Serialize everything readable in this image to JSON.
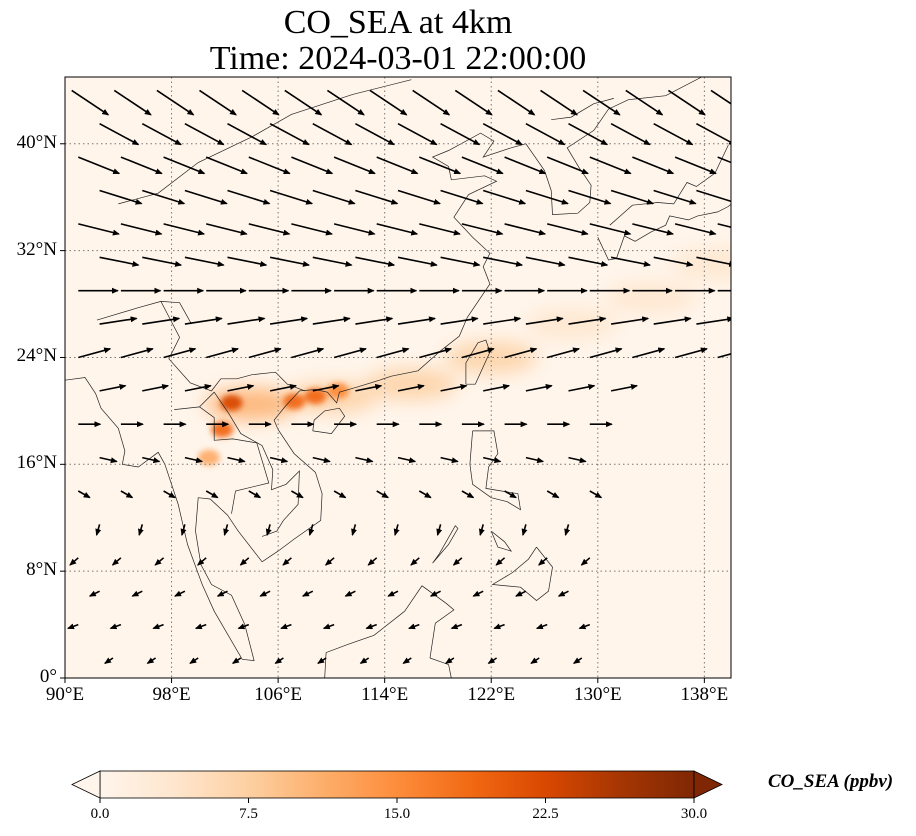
{
  "title": {
    "line1": "CO_SEA at 4km",
    "line2": "Time: 2024-03-01 22:00:00"
  },
  "map": {
    "lon_range": [
      90,
      140
    ],
    "lat_range": [
      0,
      45
    ],
    "lon_ticks": [
      {
        "value": 90,
        "label": "90°E"
      },
      {
        "value": 98,
        "label": "98°E"
      },
      {
        "value": 106,
        "label": "106°E"
      },
      {
        "value": 114,
        "label": "114°E"
      },
      {
        "value": 122,
        "label": "122°E"
      },
      {
        "value": 130,
        "label": "130°E"
      },
      {
        "value": 138,
        "label": "138°E"
      }
    ],
    "lat_ticks": [
      {
        "value": 0,
        "label": "0°"
      },
      {
        "value": 8,
        "label": "8°N"
      },
      {
        "value": 16,
        "label": "16°N"
      },
      {
        "value": 24,
        "label": "24°N"
      },
      {
        "value": 32,
        "label": "32°N"
      },
      {
        "value": 40,
        "label": "40°N"
      }
    ],
    "gridlines": true,
    "field_variable": "CO_SEA",
    "hotspots": [
      {
        "lon": 102.5,
        "lat": 20.6,
        "value": 22
      },
      {
        "lon": 101.8,
        "lat": 18.6,
        "value": 20
      },
      {
        "lon": 107.2,
        "lat": 20.7,
        "value": 19
      },
      {
        "lon": 108.8,
        "lat": 21.1,
        "value": 18
      },
      {
        "lon": 110.5,
        "lat": 21.5,
        "value": 16
      },
      {
        "lon": 100.8,
        "lat": 16.5,
        "value": 12
      }
    ],
    "plume": [
      {
        "lon": 104,
        "lat": 20.5,
        "value": 10
      },
      {
        "lon": 110,
        "lat": 21.0,
        "value": 9
      },
      {
        "lon": 116,
        "lat": 22.0,
        "value": 7
      },
      {
        "lon": 122,
        "lat": 24.0,
        "value": 6
      },
      {
        "lon": 128,
        "lat": 26.5,
        "value": 5
      },
      {
        "lon": 134,
        "lat": 28.5,
        "value": 4.5
      },
      {
        "lon": 139,
        "lat": 31.0,
        "value": 4
      }
    ],
    "wind_rows": [
      {
        "lat": 44,
        "lon_start": 90.5,
        "lon_end": 139,
        "u": 1.2,
        "v": -0.8,
        "speed": 1.0
      },
      {
        "lat": 41.5,
        "lon_start": 91,
        "lon_end": 139,
        "u": 1.3,
        "v": -0.7,
        "speed": 1.0
      },
      {
        "lat": 39,
        "lon_start": 91,
        "lon_end": 139,
        "u": 1.5,
        "v": -0.6,
        "speed": 1.0
      },
      {
        "lat": 36.5,
        "lon_start": 91,
        "lon_end": 139,
        "u": 1.6,
        "v": -0.5,
        "speed": 1.0
      },
      {
        "lat": 34,
        "lon_start": 91,
        "lon_end": 139,
        "u": 1.6,
        "v": -0.4,
        "speed": 0.95
      },
      {
        "lat": 31.5,
        "lon_start": 91,
        "lon_end": 139,
        "u": 1.5,
        "v": -0.3,
        "speed": 0.9
      },
      {
        "lat": 29,
        "lon_start": 91,
        "lon_end": 139,
        "u": 1.4,
        "v": 0.0,
        "speed": 0.9
      },
      {
        "lat": 26.5,
        "lon_start": 91,
        "lon_end": 139,
        "u": 1.3,
        "v": 0.2,
        "speed": 0.85
      },
      {
        "lat": 24,
        "lon_start": 91,
        "lon_end": 139,
        "u": 1.1,
        "v": 0.3,
        "speed": 0.75
      },
      {
        "lat": 21.5,
        "lon_start": 91,
        "lon_end": 132,
        "u": 1.0,
        "v": 0.2,
        "speed": 0.6
      },
      {
        "lat": 19,
        "lon_start": 91,
        "lon_end": 131,
        "u": 1.0,
        "v": 0.0,
        "speed": 0.5
      },
      {
        "lat": 16.5,
        "lon_start": 91,
        "lon_end": 130,
        "u": 0.9,
        "v": -0.2,
        "speed": 0.4
      },
      {
        "lat": 14,
        "lon_start": 91,
        "lon_end": 130,
        "u": 0.7,
        "v": -0.4,
        "speed": 0.3
      },
      {
        "lat": 11.5,
        "lon_start": 91,
        "lon_end": 130,
        "u": -0.2,
        "v": -0.7,
        "speed": 0.25
      },
      {
        "lat": 9,
        "lon_start": 91,
        "lon_end": 130,
        "u": -0.7,
        "v": -0.6,
        "speed": 0.25
      },
      {
        "lat": 6.5,
        "lon_start": 91,
        "lon_end": 130,
        "u": -0.8,
        "v": -0.4,
        "speed": 0.25
      },
      {
        "lat": 4,
        "lon_start": 91,
        "lon_end": 130,
        "u": -0.8,
        "v": -0.3,
        "speed": 0.25
      },
      {
        "lat": 1.5,
        "lon_start": 92,
        "lon_end": 130,
        "u": -0.6,
        "v": -0.4,
        "speed": 0.22
      }
    ]
  },
  "colorbar": {
    "label": "CO_SEA (ppbv)",
    "range": [
      0,
      30
    ],
    "extend": "both",
    "colormap": [
      "#fff5eb",
      "#fee6ce",
      "#fdd0a2",
      "#fdae6b",
      "#fd8d3c",
      "#f16913",
      "#d94801",
      "#a63603",
      "#7f2704"
    ],
    "ticks": [
      {
        "value": 0,
        "label": "0.0"
      },
      {
        "value": 7.5,
        "label": "7.5"
      },
      {
        "value": 15,
        "label": "15.0"
      },
      {
        "value": 22.5,
        "label": "22.5"
      },
      {
        "value": 30,
        "label": "30.0"
      }
    ]
  }
}
